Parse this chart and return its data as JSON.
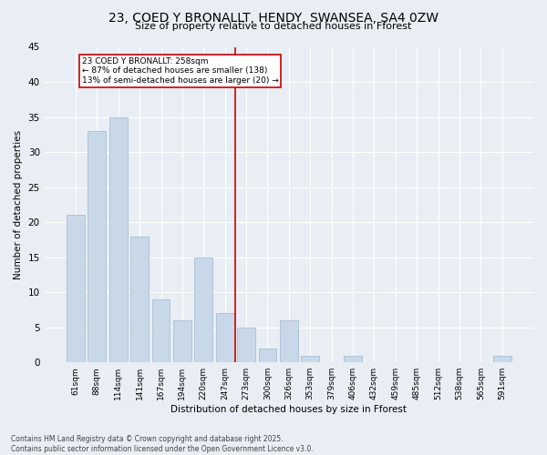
{
  "title_line1": "23, COED Y BRONALLT, HENDY, SWANSEA, SA4 0ZW",
  "title_line2": "Size of property relative to detached houses in Fforest",
  "xlabel": "Distribution of detached houses by size in Fforest",
  "ylabel": "Number of detached properties",
  "bar_color": "#c8d8e8",
  "bar_edgecolor": "#a0b8cc",
  "categories": [
    "61sqm",
    "88sqm",
    "114sqm",
    "141sqm",
    "167sqm",
    "194sqm",
    "220sqm",
    "247sqm",
    "273sqm",
    "300sqm",
    "326sqm",
    "353sqm",
    "379sqm",
    "406sqm",
    "432sqm",
    "459sqm",
    "485sqm",
    "512sqm",
    "538sqm",
    "565sqm",
    "591sqm"
  ],
  "values": [
    21,
    33,
    35,
    18,
    9,
    6,
    15,
    7,
    5,
    2,
    6,
    1,
    0,
    1,
    0,
    0,
    0,
    0,
    0,
    0,
    1
  ],
  "ylim": [
    0,
    45
  ],
  "yticks": [
    0,
    5,
    10,
    15,
    20,
    25,
    30,
    35,
    40,
    45
  ],
  "vline_x": 7.5,
  "annotation_text": "23 COED Y BRONALLT: 258sqm\n← 87% of detached houses are smaller (138)\n13% of semi-detached houses are larger (20) →",
  "annotation_box_color": "#ffffff",
  "annotation_box_edgecolor": "#cc0000",
  "vline_color": "#cc0000",
  "background_color": "#e8eef4",
  "grid_color": "#ffffff",
  "footer_line1": "Contains HM Land Registry data © Crown copyright and database right 2025.",
  "footer_line2": "Contains public sector information licensed under the Open Government Licence v3.0."
}
